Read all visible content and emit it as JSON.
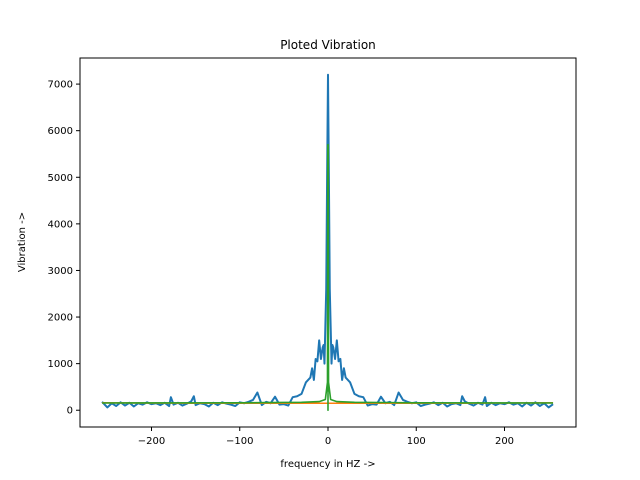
{
  "chart_data": {
    "type": "line",
    "title": "Ploted Vibration",
    "xlabel": "frequency in HZ ->",
    "ylabel": "Vibration ->",
    "xlim": [
      -281,
      281
    ],
    "ylim": [
      -360,
      7560
    ],
    "xticks": [
      -200,
      -100,
      0,
      100,
      200
    ],
    "yticks": [
      0,
      1000,
      2000,
      3000,
      4000,
      5000,
      6000,
      7000
    ],
    "grid": false,
    "series": [
      {
        "color": "#1f77b4",
        "x": [
          -256,
          -250,
          -245,
          -240,
          -235,
          -230,
          -225,
          -220,
          -215,
          -210,
          -205,
          -200,
          -195,
          -190,
          -185,
          -180,
          -178,
          -175,
          -170,
          -165,
          -160,
          -155,
          -152,
          -150,
          -145,
          -140,
          -135,
          -130,
          -125,
          -120,
          -115,
          -110,
          -105,
          -100,
          -95,
          -90,
          -85,
          -80,
          -75,
          -70,
          -65,
          -60,
          -55,
          -50,
          -45,
          -40,
          -35,
          -30,
          -25,
          -20,
          -18,
          -16,
          -14,
          -12,
          -10,
          -8,
          -6,
          -5,
          -4,
          -3,
          -2,
          -1,
          0,
          1,
          2,
          3,
          4,
          5,
          6,
          8,
          10,
          12,
          14,
          16,
          18,
          20,
          25,
          30,
          35,
          40,
          45,
          50,
          55,
          60,
          65,
          70,
          75,
          80,
          85,
          90,
          95,
          100,
          105,
          110,
          115,
          120,
          125,
          130,
          135,
          140,
          145,
          150,
          152,
          155,
          160,
          165,
          170,
          175,
          178,
          180,
          185,
          190,
          195,
          200,
          205,
          210,
          215,
          220,
          225,
          230,
          235,
          240,
          245,
          250,
          255
        ],
        "y": [
          180,
          60,
          150,
          90,
          170,
          100,
          160,
          80,
          150,
          120,
          170,
          130,
          150,
          110,
          160,
          90,
          280,
          120,
          160,
          100,
          140,
          190,
          300,
          110,
          150,
          130,
          80,
          160,
          110,
          170,
          140,
          120,
          90,
          170,
          150,
          180,
          220,
          380,
          110,
          180,
          150,
          290,
          120,
          130,
          100,
          280,
          300,
          350,
          600,
          700,
          900,
          650,
          1100,
          1050,
          1500,
          1100,
          1350,
          1400,
          1000,
          1800,
          2600,
          5000,
          7200,
          5000,
          2600,
          1800,
          1000,
          1400,
          1350,
          1100,
          1500,
          1050,
          1100,
          650,
          900,
          700,
          600,
          350,
          300,
          280,
          100,
          130,
          120,
          290,
          150,
          180,
          110,
          380,
          220,
          180,
          150,
          170,
          90,
          120,
          140,
          170,
          110,
          160,
          80,
          130,
          150,
          110,
          300,
          190,
          140,
          100,
          160,
          120,
          280,
          90,
          160,
          110,
          150,
          130,
          170,
          120,
          150,
          80,
          160,
          100,
          170,
          90,
          150,
          60,
          130
        ]
      },
      {
        "color": "#ff7f0e",
        "x": [
          -256,
          -150,
          -50,
          0,
          50,
          150,
          255
        ],
        "y": [
          160,
          150,
          150,
          150,
          150,
          150,
          160
        ]
      },
      {
        "color": "#2ca02c",
        "x": [
          -256,
          -100,
          -30,
          -10,
          -3,
          -0.6,
          -0.2,
          0,
          0.2,
          0.6,
          3,
          10,
          30,
          100,
          255
        ],
        "y": [
          155,
          160,
          170,
          185,
          230,
          600,
          5700,
          0,
          5700,
          600,
          230,
          185,
          170,
          160,
          155
        ]
      }
    ]
  }
}
